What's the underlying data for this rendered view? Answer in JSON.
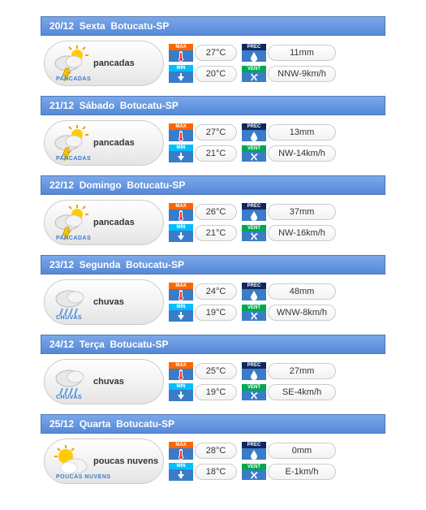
{
  "location": "Botucatu-SP",
  "days": [
    {
      "date": "20/12",
      "weekday": "Sexta",
      "condition": "pancadas",
      "caption": "PANCADAS",
      "icon": "storm-sun",
      "tmax": "27°C",
      "tmin": "20°C",
      "precip": "11mm",
      "wind": "NNW-9km/h"
    },
    {
      "date": "21/12",
      "weekday": "Sábado",
      "condition": "pancadas",
      "caption": "PANCADAS",
      "icon": "storm-sun",
      "tmax": "27°C",
      "tmin": "21°C",
      "precip": "13mm",
      "wind": "NW-14km/h"
    },
    {
      "date": "22/12",
      "weekday": "Domingo",
      "condition": "pancadas",
      "caption": "PANCADAS",
      "icon": "storm-sun",
      "tmax": "26°C",
      "tmin": "21°C",
      "precip": "37mm",
      "wind": "NW-16km/h"
    },
    {
      "date": "23/12",
      "weekday": "Segunda",
      "condition": "chuvas",
      "caption": "CHUVAS",
      "icon": "rain",
      "tmax": "24°C",
      "tmin": "19°C",
      "precip": "48mm",
      "wind": "WNW-8km/h"
    },
    {
      "date": "24/12",
      "weekday": "Terça",
      "condition": "chuvas",
      "caption": "CHUVAS",
      "icon": "rain",
      "tmax": "25°C",
      "tmin": "19°C",
      "precip": "27mm",
      "wind": "SE-4km/h"
    },
    {
      "date": "25/12",
      "weekday": "Quarta",
      "condition": "poucas nuvens",
      "caption": "POUCAS NUVENS",
      "icon": "sun-cloud",
      "tmax": "28°C",
      "tmin": "18°C",
      "precip": "0mm",
      "wind": "E-1km/h"
    }
  ],
  "labels": {
    "max": "MAX",
    "min": "MIN",
    "prec": "PREC",
    "vent": "VENT"
  },
  "colors": {
    "header_grad_top": "#7ba8e8",
    "header_grad_bot": "#5588d8",
    "max_tag": "#ff6600",
    "min_tag": "#00bfff",
    "prec_tag": "#102860",
    "vent_tag": "#00a850",
    "tag_body": "#3a7cc8",
    "pill_border": "#cccccc"
  }
}
